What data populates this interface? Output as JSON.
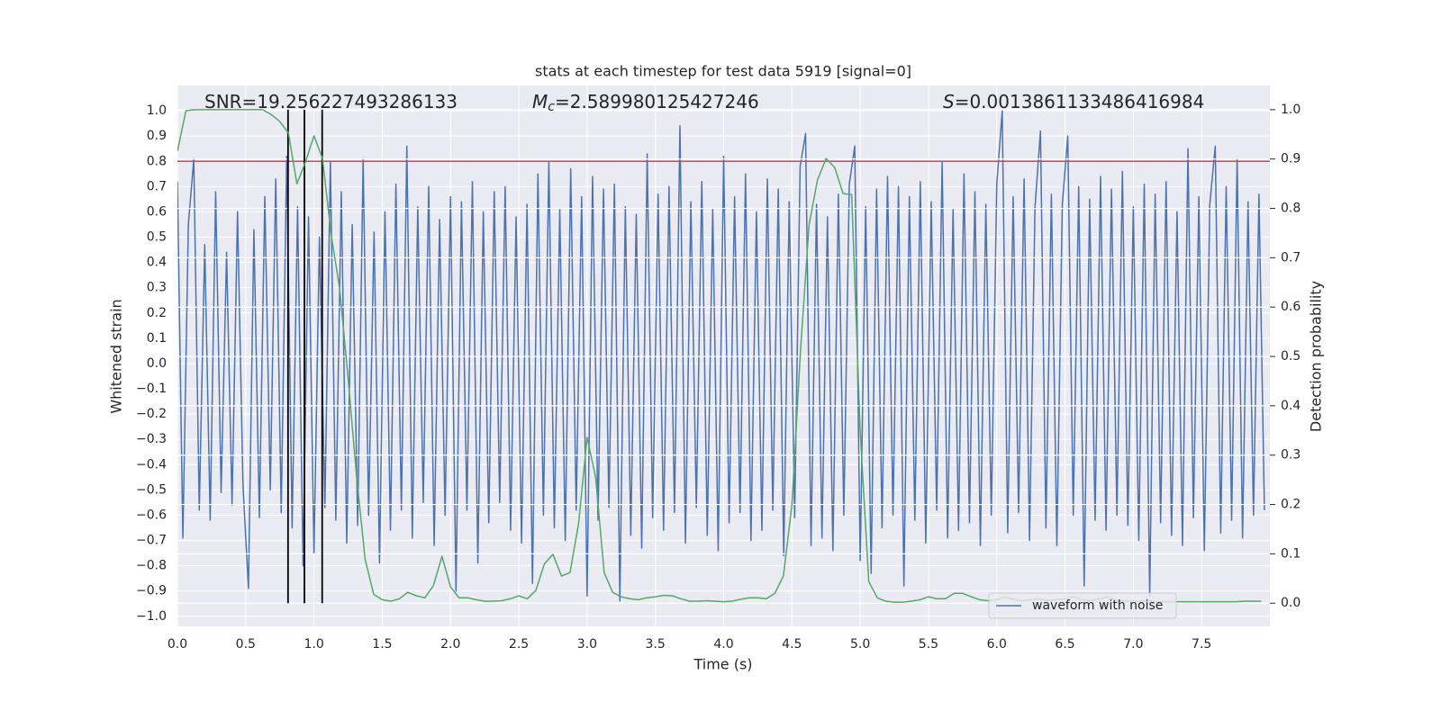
{
  "chart_data": {
    "type": "line",
    "title": "stats at each timestep for test data 5919 [signal=0]",
    "xlabel": "Time (s)",
    "ylabel": "Whitened strain",
    "y2label": "Detection probability",
    "xlim": [
      0,
      8.0
    ],
    "ylim": [
      -1.04,
      1.1
    ],
    "y2lim": [
      -0.047,
      1.049
    ],
    "xticks": [
      {
        "value": 0,
        "label": "0.0"
      },
      {
        "value": 0.5,
        "label": "0.5"
      },
      {
        "value": 1,
        "label": "1.0"
      },
      {
        "value": 1.5,
        "label": "1.5"
      },
      {
        "value": 2,
        "label": "2.0"
      },
      {
        "value": 2.5,
        "label": "2.5"
      },
      {
        "value": 3,
        "label": "3.0"
      },
      {
        "value": 3.5,
        "label": "3.5"
      },
      {
        "value": 4,
        "label": "4.0"
      },
      {
        "value": 4.5,
        "label": "4.5"
      },
      {
        "value": 5,
        "label": "5.0"
      },
      {
        "value": 5.5,
        "label": "5.5"
      },
      {
        "value": 6,
        "label": "6.0"
      },
      {
        "value": 6.5,
        "label": "6.5"
      },
      {
        "value": 7,
        "label": "7.0"
      },
      {
        "value": 7.5,
        "label": "7.5"
      }
    ],
    "yticks": [
      {
        "value": -1,
        "label": "−1.0"
      },
      {
        "value": -0.9,
        "label": "−0.9"
      },
      {
        "value": -0.8,
        "label": "−0.8"
      },
      {
        "value": -0.7,
        "label": "−0.7"
      },
      {
        "value": -0.6,
        "label": "−0.6"
      },
      {
        "value": -0.5,
        "label": "−0.5"
      },
      {
        "value": -0.4,
        "label": "−0.4"
      },
      {
        "value": -0.3,
        "label": "−0.3"
      },
      {
        "value": -0.2,
        "label": "−0.2"
      },
      {
        "value": -0.1,
        "label": "−0.1"
      },
      {
        "value": 0,
        "label": "0.0"
      },
      {
        "value": 0.1,
        "label": "0.1"
      },
      {
        "value": 0.2,
        "label": "0.2"
      },
      {
        "value": 0.3,
        "label": "0.3"
      },
      {
        "value": 0.4,
        "label": "0.4"
      },
      {
        "value": 0.5,
        "label": "0.5"
      },
      {
        "value": 0.6,
        "label": "0.6"
      },
      {
        "value": 0.7,
        "label": "0.7"
      },
      {
        "value": 0.8,
        "label": "0.8"
      },
      {
        "value": 0.9,
        "label": "0.9"
      },
      {
        "value": 1,
        "label": "1.0"
      }
    ],
    "y2ticks": [
      {
        "value": 0,
        "label": "0.0"
      },
      {
        "value": 0.1,
        "label": "0.1"
      },
      {
        "value": 0.2,
        "label": "0.2"
      },
      {
        "value": 0.3,
        "label": "0.3"
      },
      {
        "value": 0.4,
        "label": "0.4"
      },
      {
        "value": 0.5,
        "label": "0.5"
      },
      {
        "value": 0.6,
        "label": "0.6"
      },
      {
        "value": 0.7,
        "label": "0.7"
      },
      {
        "value": 0.8,
        "label": "0.8"
      },
      {
        "value": 0.9,
        "label": "0.9"
      },
      {
        "value": 1,
        "label": "1.0"
      }
    ],
    "grid": true,
    "legend": "lower right",
    "annotations": [
      {
        "text": "SNR=19.256227493286133"
      },
      {
        "symbol": "M",
        "subscript": "c",
        "text": "=2.589980125427246"
      },
      {
        "symbol": "S",
        "text": "=0.0013861133486416984"
      }
    ],
    "hlines": [
      {
        "y": 0.8,
        "color": "#c44e52"
      }
    ],
    "vlines": {
      "x": [
        0.81,
        0.93,
        1.06
      ],
      "color": "#000000",
      "axis": "y2",
      "range": [
        0,
        1
      ]
    },
    "series": [
      {
        "name": "waveform with noise",
        "color": "#4c72b0",
        "x": [
          0,
          0.04,
          0.08,
          0.12,
          0.16,
          0.2,
          0.24,
          0.28,
          0.32,
          0.36,
          0.4,
          0.44,
          0.48,
          0.52,
          0.56,
          0.6,
          0.64,
          0.68,
          0.72,
          0.76,
          0.8,
          0.84,
          0.88,
          0.92,
          0.96,
          1,
          1.04,
          1.08,
          1.12,
          1.16,
          1.2,
          1.24,
          1.28,
          1.32,
          1.36,
          1.4,
          1.44,
          1.48,
          1.52,
          1.56,
          1.6,
          1.64,
          1.68,
          1.72,
          1.76,
          1.8,
          1.84,
          1.88,
          1.92,
          1.96,
          2,
          2.04,
          2.08,
          2.12,
          2.16,
          2.2,
          2.24,
          2.28,
          2.32,
          2.36,
          2.4,
          2.44,
          2.48,
          2.52,
          2.56,
          2.6,
          2.64,
          2.68,
          2.72,
          2.76,
          2.8,
          2.84,
          2.88,
          2.92,
          2.96,
          3,
          3.04,
          3.08,
          3.12,
          3.16,
          3.2,
          3.24,
          3.28,
          3.32,
          3.36,
          3.4,
          3.44,
          3.48,
          3.52,
          3.56,
          3.6,
          3.64,
          3.68,
          3.72,
          3.76,
          3.8,
          3.84,
          3.88,
          3.92,
          3.96,
          4,
          4.04,
          4.08,
          4.12,
          4.16,
          4.2,
          4.24,
          4.28,
          4.32,
          4.36,
          4.4,
          4.44,
          4.48,
          4.52,
          4.56,
          4.6,
          4.64,
          4.68,
          4.72,
          4.76,
          4.8,
          4.84,
          4.88,
          4.92,
          4.96,
          5,
          5.04,
          5.08,
          5.12,
          5.16,
          5.2,
          5.24,
          5.28,
          5.32,
          5.36,
          5.4,
          5.44,
          5.48,
          5.52,
          5.56,
          5.6,
          5.64,
          5.68,
          5.72,
          5.76,
          5.8,
          5.84,
          5.88,
          5.92,
          5.96,
          6,
          6.04,
          6.08,
          6.12,
          6.16,
          6.2,
          6.24,
          6.28,
          6.32,
          6.36,
          6.4,
          6.44,
          6.48,
          6.52,
          6.56,
          6.6,
          6.64,
          6.68,
          6.72,
          6.76,
          6.8,
          6.84,
          6.88,
          6.92,
          6.96,
          7,
          7.04,
          7.08,
          7.12,
          7.16,
          7.2,
          7.24,
          7.28,
          7.32,
          7.36,
          7.4,
          7.44,
          7.48,
          7.52,
          7.56,
          7.6,
          7.64,
          7.68,
          7.72,
          7.76,
          7.8,
          7.84,
          7.88,
          7.92,
          7.96
        ],
        "values": [
          0.72,
          -0.69,
          0.55,
          0.81,
          -0.58,
          0.47,
          -0.62,
          0.68,
          -0.51,
          0.44,
          -0.56,
          0.6,
          -0.48,
          -0.89,
          0.53,
          -0.61,
          0.66,
          -0.5,
          0.73,
          -0.59,
          0.82,
          -0.65,
          0.62,
          -0.8,
          0.58,
          -0.75,
          0.5,
          -0.57,
          0.8,
          -0.62,
          0.68,
          -0.71,
          0.55,
          -0.64,
          0.81,
          -0.6,
          0.52,
          -0.79,
          0.6,
          -0.66,
          0.71,
          -0.58,
          0.86,
          -0.69,
          0.62,
          -0.55,
          0.7,
          -0.72,
          0.57,
          -0.6,
          0.66,
          -0.9,
          0.64,
          -0.58,
          0.72,
          -0.79,
          0.6,
          -0.63,
          0.68,
          -0.55,
          0.7,
          -0.66,
          0.58,
          -0.71,
          0.63,
          -0.87,
          0.75,
          -0.6,
          0.8,
          -0.65,
          0.61,
          -0.7,
          0.77,
          -0.58,
          0.66,
          -0.92,
          0.74,
          -0.62,
          0.69,
          -0.57,
          0.71,
          -0.94,
          0.62,
          -0.68,
          0.59,
          -0.73,
          0.83,
          -0.61,
          0.67,
          -0.66,
          0.7,
          -0.59,
          0.94,
          -0.71,
          0.64,
          -0.57,
          0.72,
          -0.68,
          0.61,
          -0.74,
          0.82,
          -0.63,
          0.66,
          -0.59,
          0.75,
          -0.7,
          0.6,
          -0.66,
          0.73,
          -0.58,
          0.69,
          -0.76,
          0.64,
          -0.61,
          0.78,
          0.91,
          -0.72,
          0.63,
          -0.69,
          0.58,
          -0.74,
          0.67,
          -0.6,
          0.71,
          0.86,
          -0.78,
          0.62,
          -0.83,
          0.69,
          -0.65,
          0.74,
          -0.6,
          0.7,
          -0.88,
          0.66,
          -0.62,
          0.72,
          -0.71,
          0.64,
          -0.58,
          0.8,
          -0.69,
          0.61,
          -0.66,
          0.75,
          -0.63,
          0.68,
          -0.72,
          0.63,
          -0.6,
          0.71,
          1.0,
          -0.67,
          0.66,
          -0.59,
          0.73,
          -0.7,
          0.62,
          0.92,
          -0.65,
          0.67,
          -0.72,
          0.63,
          0.9,
          -0.6,
          0.7,
          -0.88,
          0.65,
          -0.62,
          0.74,
          -0.66,
          0.69,
          -0.6,
          0.76,
          -0.64,
          0.62,
          -0.7,
          0.71,
          -0.92,
          0.67,
          -0.63,
          0.72,
          -0.68,
          0.6,
          -0.72,
          0.85,
          -0.61,
          0.66,
          -0.74,
          0.63,
          0.86,
          -0.67,
          0.7,
          -0.62,
          0.81,
          -0.69,
          0.64,
          -0.6,
          0.67,
          -0.58
        ]
      },
      {
        "color": "#55a868",
        "axis": "y2",
        "x": [
          0,
          0.0625,
          0.125,
          0.1875,
          0.25,
          0.3125,
          0.375,
          0.4375,
          0.5,
          0.5625,
          0.625,
          0.6875,
          0.75,
          0.8125,
          0.875,
          0.9375,
          1,
          1.0625,
          1.125,
          1.1875,
          1.25,
          1.3125,
          1.375,
          1.4375,
          1.5,
          1.5625,
          1.625,
          1.6875,
          1.75,
          1.8125,
          1.875,
          1.9375,
          2,
          2.0625,
          2.125,
          2.1875,
          2.25,
          2.3125,
          2.375,
          2.4375,
          2.5,
          2.5625,
          2.625,
          2.6875,
          2.75,
          2.8125,
          2.875,
          2.9375,
          3,
          3.0625,
          3.125,
          3.1875,
          3.25,
          3.3125,
          3.375,
          3.4375,
          3.5,
          3.5625,
          3.625,
          3.6875,
          3.75,
          3.8125,
          3.875,
          3.9375,
          4,
          4.0625,
          4.125,
          4.1875,
          4.25,
          4.3125,
          4.375,
          4.4375,
          4.5,
          4.5625,
          4.625,
          4.6875,
          4.75,
          4.8125,
          4.875,
          4.9375,
          5,
          5.0625,
          5.125,
          5.1875,
          5.25,
          5.3125,
          5.375,
          5.4375,
          5.5,
          5.5625,
          5.625,
          5.6875,
          5.75,
          5.8125,
          5.875,
          5.9375,
          6,
          6.0625,
          6.125,
          6.1875,
          6.25,
          6.3125,
          6.375,
          6.4375,
          6.5,
          6.5625,
          6.625,
          6.6875,
          6.75,
          6.8125,
          6.875,
          6.9375,
          7,
          7.0625,
          7.125,
          7.1875,
          7.25,
          7.3125,
          7.375,
          7.4375,
          7.5,
          7.5625,
          7.625,
          7.6875,
          7.75,
          7.8125,
          7.875,
          7.9375
        ],
        "values": [
          0.916,
          0.998,
          1.0,
          1.0,
          1.0,
          1.0,
          1.0,
          1.0,
          1.0,
          1.0,
          1.0,
          0.99,
          0.976,
          0.953,
          0.85,
          0.894,
          0.947,
          0.901,
          0.748,
          0.639,
          0.456,
          0.255,
          0.088,
          0.018,
          0.007,
          0.004,
          0.009,
          0.022,
          0.015,
          0.011,
          0.036,
          0.095,
          0.033,
          0.011,
          0.011,
          0.007,
          0.004,
          0.004,
          0.005,
          0.009,
          0.015,
          0.009,
          0.026,
          0.08,
          0.099,
          0.055,
          0.062,
          0.161,
          0.336,
          0.255,
          0.062,
          0.022,
          0.013,
          0.009,
          0.007,
          0.011,
          0.013,
          0.016,
          0.015,
          0.009,
          0.004,
          0.004,
          0.005,
          0.004,
          0.003,
          0.004,
          0.008,
          0.011,
          0.011,
          0.009,
          0.02,
          0.055,
          0.2,
          0.51,
          0.766,
          0.858,
          0.901,
          0.883,
          0.83,
          0.828,
          0.347,
          0.044,
          0.011,
          0.004,
          0.002,
          0.002,
          0.004,
          0.007,
          0.013,
          0.009,
          0.009,
          0.02,
          0.02,
          0.013,
          0.007,
          0.005,
          0.007,
          0.013,
          0.007,
          0.005,
          0.007,
          0.009,
          0.005,
          0.007,
          0.009,
          0.013,
          0.007,
          0.005,
          0.009,
          0.013,
          0.005,
          0.004,
          0.004,
          0.004,
          0.004,
          0.003,
          0.003,
          0.003,
          0.003,
          0.003,
          0.003,
          0.003,
          0.003,
          0.003,
          0.003,
          0.004,
          0.004,
          0.004
        ]
      }
    ]
  }
}
